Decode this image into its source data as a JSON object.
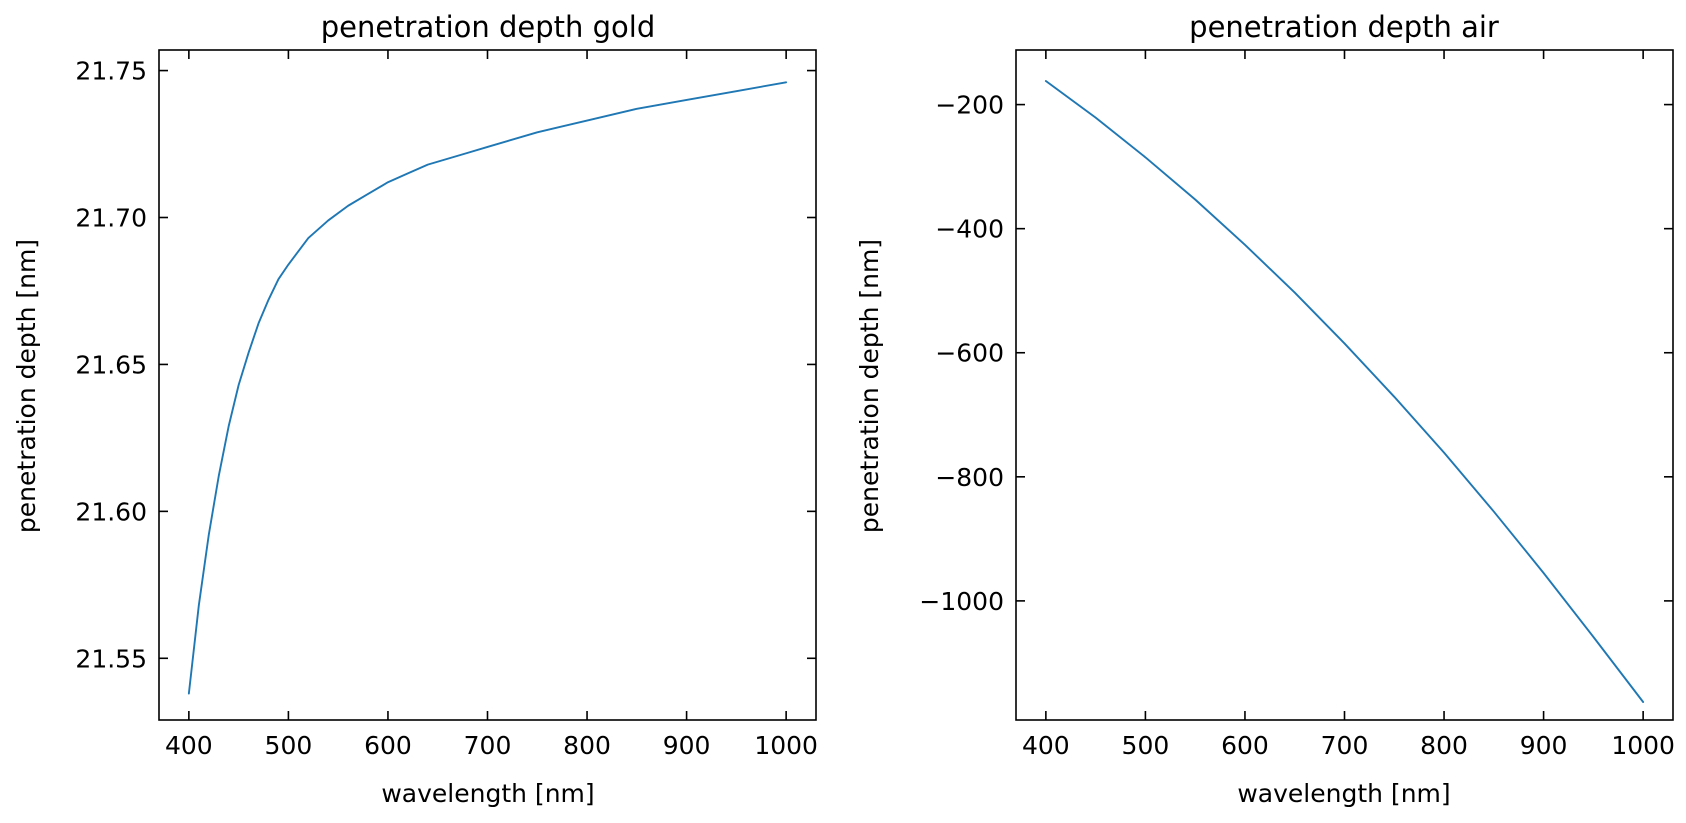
{
  "chart_data": [
    {
      "type": "line",
      "title": "penetration depth gold",
      "xlabel": "wavelength [nm]",
      "ylabel": "penetration depth  [nm]",
      "xlim": [
        370,
        1030
      ],
      "ylim": [
        21.529,
        21.757
      ],
      "xticks": [
        400,
        500,
        600,
        700,
        800,
        900,
        1000
      ],
      "xtick_labels": [
        "400",
        "500",
        "600",
        "700",
        "800",
        "900",
        "1000"
      ],
      "yticks": [
        21.55,
        21.6,
        21.65,
        21.7,
        21.75
      ],
      "ytick_labels": [
        "21.55",
        "21.60",
        "21.65",
        "21.70",
        "21.75"
      ],
      "grid": false,
      "tick_direction": "in",
      "series_color": "#1f77b4",
      "x": [
        400,
        410,
        420,
        430,
        440,
        450,
        460,
        470,
        480,
        490,
        500,
        520,
        540,
        560,
        580,
        600,
        620,
        640,
        660,
        680,
        700,
        750,
        800,
        850,
        900,
        950,
        1000
      ],
      "y": [
        21.538,
        21.568,
        21.592,
        21.612,
        21.629,
        21.643,
        21.654,
        21.664,
        21.672,
        21.679,
        21.684,
        21.693,
        21.699,
        21.704,
        21.708,
        21.712,
        21.715,
        21.718,
        21.72,
        21.722,
        21.724,
        21.729,
        21.733,
        21.737,
        21.74,
        21.743,
        21.746
      ]
    },
    {
      "type": "line",
      "title": "penetration depth air",
      "xlabel": "wavelength [nm]",
      "ylabel": "penetration depth [nm]",
      "xlim": [
        370,
        1030
      ],
      "ylim": [
        -1192,
        -112
      ],
      "xticks": [
        400,
        500,
        600,
        700,
        800,
        900,
        1000
      ],
      "xtick_labels": [
        "400",
        "500",
        "600",
        "700",
        "800",
        "900",
        "1000"
      ],
      "yticks": [
        -1000,
        -800,
        -600,
        -400,
        -200
      ],
      "ytick_labels": [
        "−1000",
        "−800",
        "−600",
        "−400",
        "−200"
      ],
      "grid": false,
      "tick_direction": "in",
      "series_color": "#1f77b4",
      "x": [
        400,
        450,
        500,
        550,
        600,
        650,
        700,
        750,
        800,
        850,
        900,
        950,
        1000
      ],
      "y": [
        -162,
        -221,
        -285,
        -353,
        -426,
        -503,
        -585,
        -671,
        -761,
        -856,
        -955,
        -1058,
        -1163
      ]
    }
  ]
}
